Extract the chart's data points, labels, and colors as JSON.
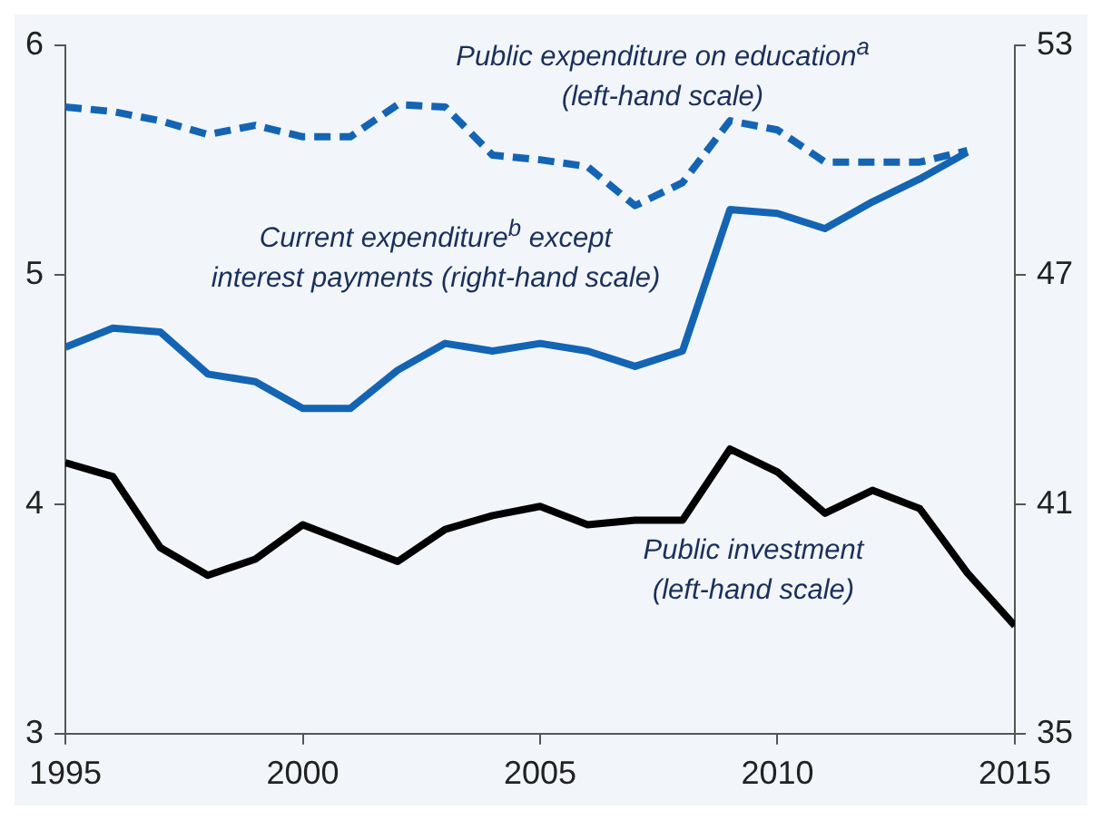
{
  "chart_data": {
    "type": "line",
    "x": [
      1995,
      1996,
      1997,
      1998,
      1999,
      2000,
      2001,
      2002,
      2003,
      2004,
      2005,
      2006,
      2007,
      2008,
      2009,
      2010,
      2011,
      2012,
      2013,
      2014,
      2015
    ],
    "series": [
      {
        "color": "#1464b4",
        "line_style": "dashed",
        "values": [
          5.73,
          5.71,
          5.67,
          5.61,
          5.65,
          5.6,
          5.6,
          5.74,
          5.73,
          5.52,
          5.5,
          5.47,
          5.3,
          5.4,
          5.67,
          5.63,
          5.49,
          5.49,
          5.49,
          5.54,
          null
        ]
      },
      {
        "color": "#1464b4",
        "line_style": "solid",
        "axis": "y2",
        "values": [
          45.1,
          45.6,
          45.5,
          44.4,
          44.2,
          43.5,
          43.5,
          44.5,
          45.2,
          45.0,
          45.2,
          45.0,
          44.6,
          45.0,
          48.7,
          48.6,
          48.2,
          48.9,
          49.5,
          50.2,
          null
        ]
      },
      {
        "color": "#000000",
        "line_style": "solid",
        "values": [
          4.18,
          4.12,
          3.81,
          3.69,
          3.76,
          3.91,
          3.83,
          3.75,
          3.89,
          3.95,
          3.99,
          3.91,
          3.93,
          3.93,
          4.24,
          4.14,
          3.96,
          4.06,
          3.98,
          3.7,
          3.47
        ]
      }
    ],
    "xlim": [
      1995,
      2015
    ],
    "xticks": [
      1995,
      2000,
      2005,
      2010,
      2015
    ],
    "ylim": [
      3,
      6
    ],
    "yticks": [
      3,
      4,
      5,
      6
    ],
    "y2lim": [
      35,
      53
    ],
    "y2ticks": [
      35,
      41,
      47,
      53
    ],
    "grid": false,
    "legend": false,
    "marker": "none",
    "annotations": [
      "Public expenditure on education$^{a}$\n(left-hand scale)",
      "Current expenditure$^{b}$ except\ninterest payments (right-hand scale)",
      "Public investment\n(left-hand scale)"
    ]
  }
}
